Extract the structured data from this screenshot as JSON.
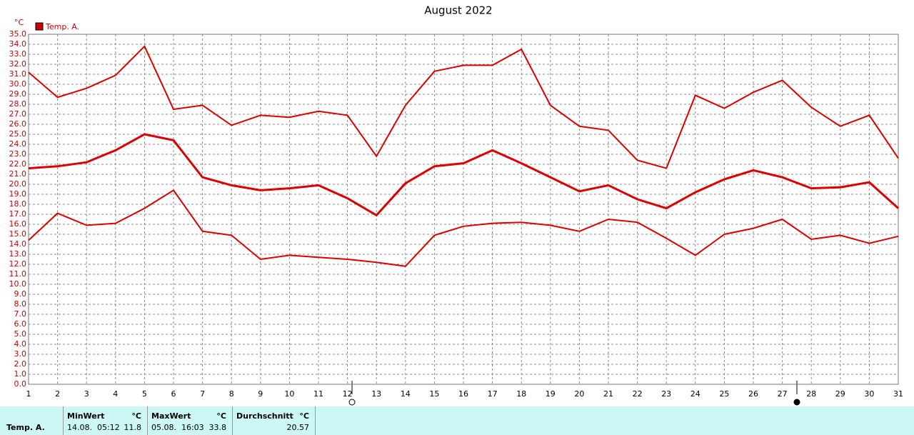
{
  "chart_data": {
    "type": "line",
    "title": "August 2022",
    "y_label": "°C",
    "legend": "Temp. A.",
    "legend_color": "#cc0000",
    "x": [
      1,
      2,
      3,
      4,
      5,
      6,
      7,
      8,
      9,
      10,
      11,
      12,
      13,
      14,
      15,
      16,
      17,
      18,
      19,
      20,
      21,
      22,
      23,
      24,
      25,
      26,
      27,
      28,
      29,
      30,
      31
    ],
    "xlim": [
      1,
      31
    ],
    "xticks": [
      1,
      2,
      3,
      4,
      5,
      6,
      7,
      8,
      9,
      10,
      11,
      12,
      13,
      14,
      15,
      16,
      17,
      18,
      19,
      20,
      21,
      22,
      23,
      24,
      25,
      26,
      27,
      28,
      29,
      30,
      31
    ],
    "ylim": [
      0,
      35
    ],
    "yticks": [
      {
        "value": 0,
        "label": "0.0"
      },
      {
        "value": 1,
        "label": "1.0"
      },
      {
        "value": 2,
        "label": "2.0"
      },
      {
        "value": 3,
        "label": "3.0"
      },
      {
        "value": 4,
        "label": "4.0"
      },
      {
        "value": 5,
        "label": "5.0"
      },
      {
        "value": 6,
        "label": "6.0"
      },
      {
        "value": 7,
        "label": "7.0"
      },
      {
        "value": 8,
        "label": "8.0"
      },
      {
        "value": 9,
        "label": "9.0"
      },
      {
        "value": 10,
        "label": "10.0"
      },
      {
        "value": 11,
        "label": "11.0"
      },
      {
        "value": 12,
        "label": "12.0"
      },
      {
        "value": 13,
        "label": "13.0"
      },
      {
        "value": 14,
        "label": "14.0"
      },
      {
        "value": 15,
        "label": "15.0"
      },
      {
        "value": 16,
        "label": "16.0"
      },
      {
        "value": 17,
        "label": "17.0"
      },
      {
        "value": 18,
        "label": "18.0"
      },
      {
        "value": 19,
        "label": "19.0"
      },
      {
        "value": 20,
        "label": "20.0"
      },
      {
        "value": 21,
        "label": "21.0"
      },
      {
        "value": 22,
        "label": "22.0"
      },
      {
        "value": 23,
        "label": "23.0"
      },
      {
        "value": 24,
        "label": "24.0"
      },
      {
        "value": 25,
        "label": "25.0"
      },
      {
        "value": 26,
        "label": "26.0"
      },
      {
        "value": 27,
        "label": "27.0"
      },
      {
        "value": 28,
        "label": "28.0"
      },
      {
        "value": 29,
        "label": "29.0"
      },
      {
        "value": 30,
        "label": "30.0"
      },
      {
        "value": 31,
        "label": "31.0"
      },
      {
        "value": 32,
        "label": "32.0"
      },
      {
        "value": 33,
        "label": "33.0"
      },
      {
        "value": 34,
        "label": "34.0"
      },
      {
        "value": 35,
        "label": "35.0"
      }
    ],
    "grid": true,
    "series": [
      {
        "color": "#dd0000",
        "values": [
          31.2,
          28.7,
          29.6,
          30.9,
          33.8,
          27.5,
          27.9,
          25.9,
          26.9,
          26.7,
          27.3,
          26.9,
          22.8,
          27.9,
          31.3,
          31.9,
          31.9,
          33.5,
          27.9,
          25.8,
          25.4,
          22.4,
          21.6,
          28.9,
          27.6,
          29.2,
          30.4,
          27.7,
          25.8,
          26.9,
          22.6
        ]
      },
      {
        "color": "#dd0000",
        "values": [
          21.6,
          21.8,
          22.2,
          23.4,
          25.0,
          24.4,
          20.7,
          19.9,
          19.4,
          19.6,
          19.9,
          18.6,
          16.9,
          20.1,
          21.8,
          22.1,
          23.4,
          22.1,
          20.7,
          19.3,
          19.9,
          18.5,
          17.6,
          19.2,
          20.5,
          21.4,
          20.7,
          19.6,
          19.7,
          20.2,
          17.6
        ]
      },
      {
        "color": "#dd0000",
        "values": [
          14.4,
          17.1,
          15.9,
          16.1,
          17.6,
          19.4,
          15.3,
          14.9,
          12.5,
          12.9,
          12.7,
          12.5,
          12.2,
          11.8,
          14.9,
          15.8,
          16.1,
          16.2,
          15.9,
          15.3,
          16.5,
          16.2,
          14.6,
          12.9,
          15.0,
          15.6,
          16.5,
          14.5,
          14.9,
          14.1,
          14.8
        ]
      }
    ]
  },
  "stats": {
    "row_label": "Temp. A.",
    "min_header": "MinWert",
    "min_unit": "°C",
    "min_time": "14.08.  05:12",
    "min_value": "11.8",
    "max_header": "MaxWert",
    "max_unit": "°C",
    "max_time": "05.08.  16:03",
    "max_value": "33.8",
    "avg_header": "Durchschnitt",
    "avg_unit": "°C",
    "avg_value": "20.57"
  }
}
